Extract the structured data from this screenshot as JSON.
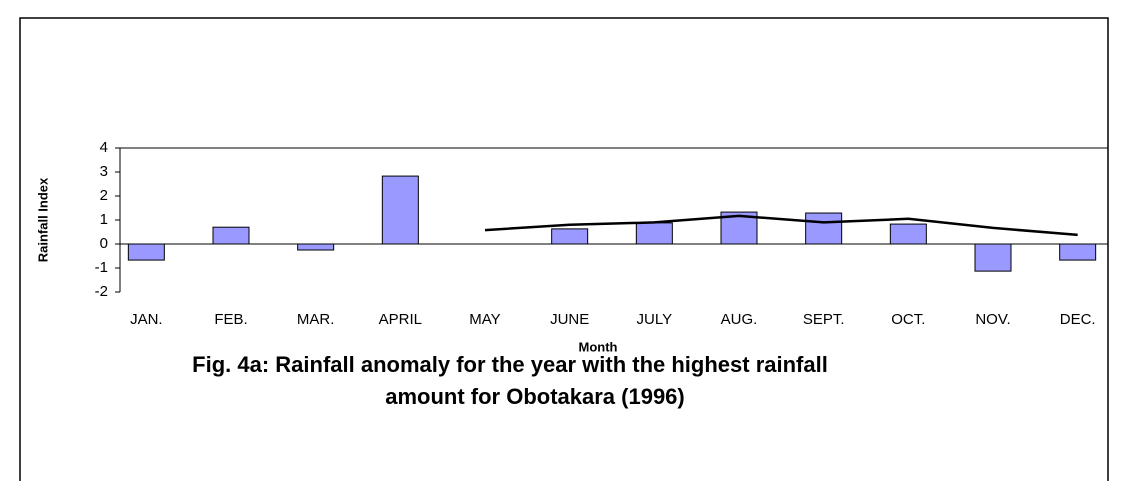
{
  "chart_data": {
    "type": "bar+line",
    "title": [
      "Fig. 4a: Rainfall anomaly for the year with the highest rainfall",
      "amount for Obotakara (1996)"
    ],
    "x_label": "Month",
    "y_label": "Rainfall Index",
    "categories": [
      "JAN.",
      "FEB.",
      "MAR.",
      "APRIL",
      "MAY",
      "JUNE",
      "JULY",
      "AUG.",
      "SEPT.",
      "OCT.",
      "NOV.",
      "DEC."
    ],
    "series": [
      {
        "type": "bar",
        "color": "#9999ff",
        "values": [
          -0.67,
          0.7,
          -0.25,
          2.83,
          null,
          0.63,
          0.88,
          1.33,
          1.29,
          0.83,
          -1.13,
          -0.67
        ]
      },
      {
        "type": "line",
        "color": "#000000",
        "values": [
          null,
          null,
          null,
          null,
          0.58,
          0.8,
          0.9,
          1.17,
          0.9,
          1.05,
          0.67,
          0.38
        ]
      }
    ],
    "ylim": [
      -2,
      4
    ],
    "yticks": [
      -2,
      -1,
      0,
      1,
      2,
      3,
      4
    ],
    "grid": false
  }
}
